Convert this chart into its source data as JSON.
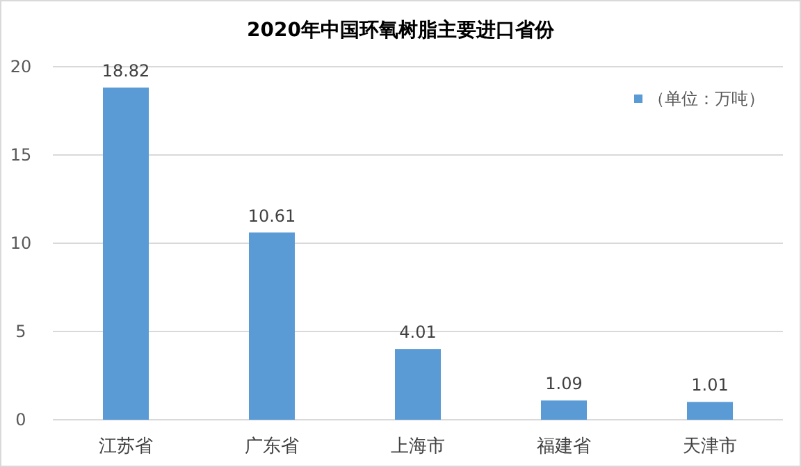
{
  "chart_data": {
    "type": "bar",
    "title": "2020年中国环氧树脂主要进口省份",
    "categories": [
      "江苏省",
      "广东省",
      "上海市",
      "福建省",
      "天津市"
    ],
    "series": [
      {
        "name": "（单位：万吨）",
        "color": "#5b9bd5",
        "values": [
          18.82,
          10.61,
          4.01,
          1.09,
          1.01
        ]
      }
    ],
    "ylim": [
      0,
      20
    ],
    "yticks": [
      0,
      5,
      10,
      15,
      20
    ],
    "grid": "y",
    "legend": "top right",
    "data_labels": true
  }
}
